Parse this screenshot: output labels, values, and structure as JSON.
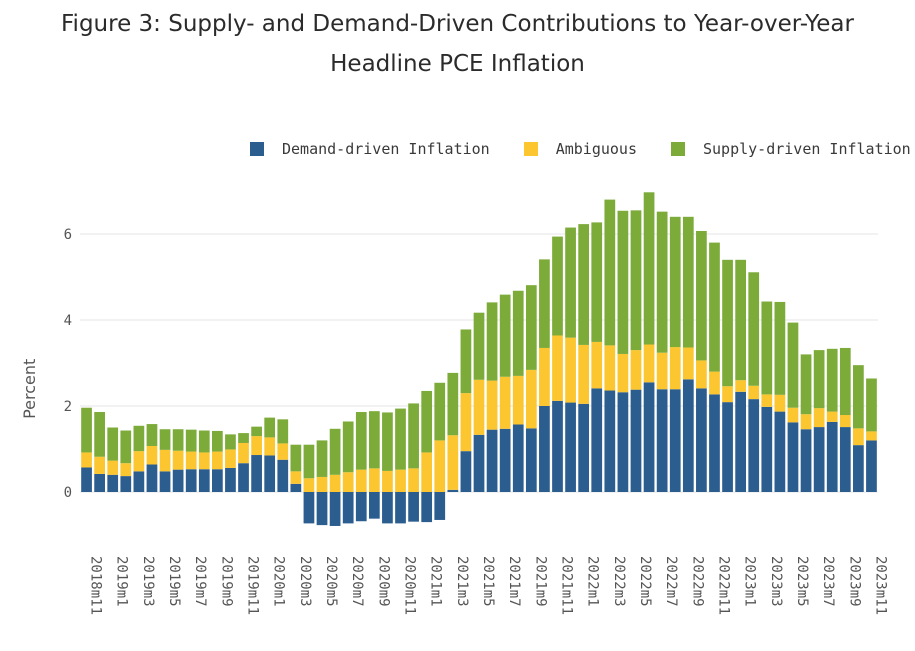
{
  "title_line1": "Figure 3: Supply- and Demand-Driven Contributions to Year-over-Year",
  "title_line2": "Headline PCE Inflation",
  "colors": {
    "demand": "#2c5d8f",
    "ambiguous": "#fbc62f",
    "supply": "#7dab3a",
    "grid": "#e6e6e6",
    "axis_text": "#555555"
  },
  "legend": [
    {
      "label": "Demand-driven Inflation",
      "color": "#2c5d8f"
    },
    {
      "label": "Ambiguous",
      "color": "#fbc62f"
    },
    {
      "label": "Supply-driven Inflation",
      "color": "#7dab3a"
    }
  ],
  "chart_data": {
    "type": "bar",
    "stacked": true,
    "title": "Figure 3: Supply- and Demand-Driven Contributions to Year-over-Year Headline PCE Inflation",
    "xlabel": "",
    "ylabel": "Percent",
    "ylim": [
      -1.2,
      7
    ],
    "yticks": [
      0,
      2,
      4,
      6
    ],
    "grid": true,
    "legend_position": "top",
    "categories": [
      "2018m11",
      "2018m12",
      "2019m1",
      "2019m2",
      "2019m3",
      "2019m4",
      "2019m5",
      "2019m6",
      "2019m7",
      "2019m8",
      "2019m9",
      "2019m10",
      "2019m11",
      "2019m12",
      "2020m1",
      "2020m2",
      "2020m3",
      "2020m4",
      "2020m5",
      "2020m6",
      "2020m7",
      "2020m8",
      "2020m9",
      "2020m10",
      "2020m11",
      "2020m12",
      "2021m1",
      "2021m2",
      "2021m3",
      "2021m4",
      "2021m5",
      "2021m6",
      "2021m7",
      "2021m8",
      "2021m9",
      "2021m10",
      "2021m11",
      "2021m12",
      "2022m1",
      "2022m2",
      "2022m3",
      "2022m4",
      "2022m5",
      "2022m6",
      "2022m7",
      "2022m8",
      "2022m9",
      "2022m10",
      "2022m11",
      "2022m12",
      "2023m1",
      "2023m2",
      "2023m3",
      "2023m4",
      "2023m5",
      "2023m6",
      "2023m7",
      "2023m8",
      "2023m9",
      "2023m10",
      "2023m11"
    ],
    "tick_labels": [
      "2018m11",
      "2019m1",
      "2019m3",
      "2019m5",
      "2019m7",
      "2019m9",
      "2019m11",
      "2020m1",
      "2020m3",
      "2020m5",
      "2020m7",
      "2020m9",
      "2020m11",
      "2021m1",
      "2021m3",
      "2021m5",
      "2021m7",
      "2021m9",
      "2021m11",
      "2022m1",
      "2022m3",
      "2022m5",
      "2022m7",
      "2022m9",
      "2022m11",
      "2023m1",
      "2023m3",
      "2023m5",
      "2023m7",
      "2023m9",
      "2023m11"
    ],
    "series": [
      {
        "name": "Demand-driven Inflation",
        "values": [
          0.57,
          0.42,
          0.4,
          0.37,
          0.48,
          0.64,
          0.48,
          0.52,
          0.53,
          0.53,
          0.53,
          0.56,
          0.67,
          0.86,
          0.85,
          0.75,
          0.19,
          -0.73,
          -0.77,
          -0.79,
          -0.73,
          -0.68,
          -0.62,
          -0.73,
          -0.73,
          -0.69,
          -0.7,
          -0.65,
          0.05,
          0.95,
          1.33,
          1.45,
          1.47,
          1.57,
          1.48,
          2.0,
          2.12,
          2.08,
          2.05,
          2.41,
          2.36,
          2.32,
          2.38,
          2.55,
          2.39,
          2.39,
          2.62,
          2.41,
          2.27,
          2.09,
          2.33,
          2.16,
          1.98,
          1.87,
          1.62,
          1.46,
          1.51,
          1.63,
          1.51,
          1.09,
          1.2
        ]
      },
      {
        "name": "Ambiguous",
        "values": [
          0.35,
          0.4,
          0.33,
          0.3,
          0.47,
          0.43,
          0.5,
          0.44,
          0.41,
          0.39,
          0.41,
          0.43,
          0.47,
          0.44,
          0.42,
          0.38,
          0.29,
          0.32,
          0.35,
          0.4,
          0.46,
          0.52,
          0.55,
          0.49,
          0.52,
          0.55,
          0.92,
          1.2,
          1.27,
          1.35,
          1.28,
          1.14,
          1.21,
          1.13,
          1.36,
          1.35,
          1.52,
          1.51,
          1.37,
          1.08,
          1.05,
          0.89,
          0.92,
          0.88,
          0.85,
          0.98,
          0.74,
          0.65,
          0.53,
          0.37,
          0.27,
          0.31,
          0.29,
          0.39,
          0.34,
          0.35,
          0.44,
          0.24,
          0.28,
          0.39,
          0.21
        ]
      },
      {
        "name": "Supply-driven Inflation",
        "values": [
          1.04,
          1.04,
          0.77,
          0.76,
          0.59,
          0.51,
          0.48,
          0.5,
          0.51,
          0.51,
          0.48,
          0.35,
          0.23,
          0.22,
          0.46,
          0.56,
          0.62,
          0.78,
          0.85,
          1.07,
          1.18,
          1.34,
          1.33,
          1.36,
          1.42,
          1.51,
          1.43,
          1.34,
          1.45,
          1.48,
          1.56,
          1.82,
          1.91,
          1.98,
          1.97,
          2.06,
          2.3,
          2.56,
          2.81,
          2.78,
          3.39,
          3.33,
          3.25,
          3.54,
          3.28,
          3.03,
          3.04,
          3.01,
          3.0,
          2.94,
          2.8,
          2.64,
          2.16,
          2.16,
          1.98,
          1.39,
          1.35,
          1.46,
          1.56,
          1.47,
          1.23
        ]
      }
    ]
  }
}
